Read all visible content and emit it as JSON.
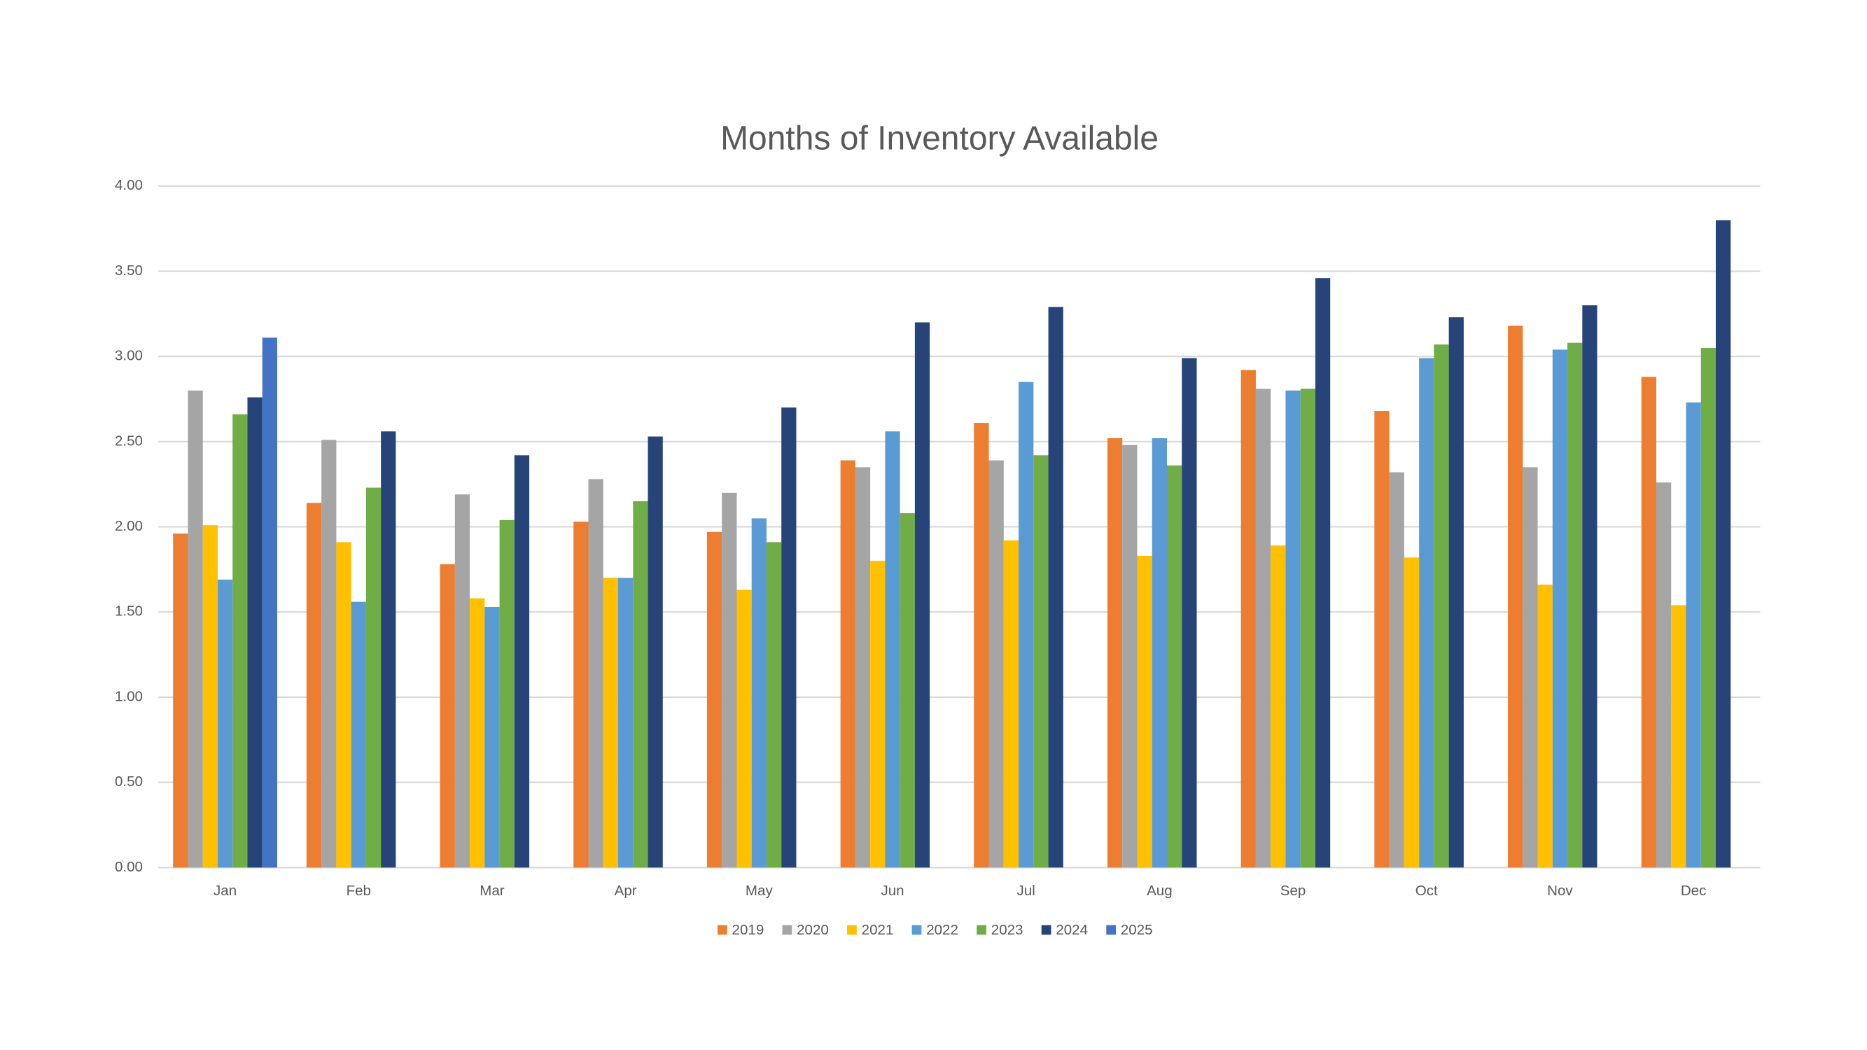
{
  "chart_data": {
    "type": "bar",
    "title": "Months of Inventory Available",
    "categories": [
      "Jan",
      "Feb",
      "Mar",
      "Apr",
      "May",
      "Jun",
      "Jul",
      "Aug",
      "Sep",
      "Oct",
      "Nov",
      "Dec"
    ],
    "series": [
      {
        "name": "2019",
        "color": "#ed7d31",
        "values": [
          1.96,
          2.14,
          1.78,
          2.03,
          1.97,
          2.39,
          2.61,
          2.52,
          2.92,
          2.68,
          3.18,
          2.88
        ]
      },
      {
        "name": "2020",
        "color": "#a5a5a5",
        "values": [
          2.8,
          2.51,
          2.19,
          2.28,
          2.2,
          2.35,
          2.39,
          2.48,
          2.81,
          2.32,
          2.35,
          2.26
        ]
      },
      {
        "name": "2021",
        "color": "#ffc000",
        "values": [
          2.01,
          1.91,
          1.58,
          1.7,
          1.63,
          1.8,
          1.92,
          1.83,
          1.89,
          1.82,
          1.66,
          1.54
        ]
      },
      {
        "name": "2022",
        "color": "#5b9bd5",
        "values": [
          1.69,
          1.56,
          1.53,
          1.7,
          2.05,
          2.56,
          2.85,
          2.52,
          2.8,
          2.99,
          3.04,
          2.73
        ]
      },
      {
        "name": "2023",
        "color": "#70ad47",
        "values": [
          2.66,
          2.23,
          2.04,
          2.15,
          1.91,
          2.08,
          2.42,
          2.36,
          2.81,
          3.07,
          3.08,
          3.05
        ]
      },
      {
        "name": "2024",
        "color": "#264478",
        "values": [
          2.76,
          2.56,
          2.42,
          2.53,
          2.7,
          3.2,
          3.29,
          2.99,
          3.46,
          3.23,
          3.3,
          3.8
        ]
      },
      {
        "name": "2025",
        "color": "#4472c4",
        "values": [
          3.11,
          null,
          null,
          null,
          null,
          null,
          null,
          null,
          null,
          null,
          null,
          null
        ]
      }
    ],
    "ylim": [
      0,
      4
    ],
    "yticks": [
      {
        "value": 0,
        "label": "0.00"
      },
      {
        "value": 0.5,
        "label": "0.50"
      },
      {
        "value": 1,
        "label": "1.00"
      },
      {
        "value": 1.5,
        "label": "1.50"
      },
      {
        "value": 2,
        "label": "2.00"
      },
      {
        "value": 2.5,
        "label": "2.50"
      },
      {
        "value": 3,
        "label": "3.00"
      },
      {
        "value": 3.5,
        "label": "3.50"
      },
      {
        "value": 4,
        "label": "4.00"
      }
    ],
    "grid": true,
    "legend": "bottom"
  }
}
